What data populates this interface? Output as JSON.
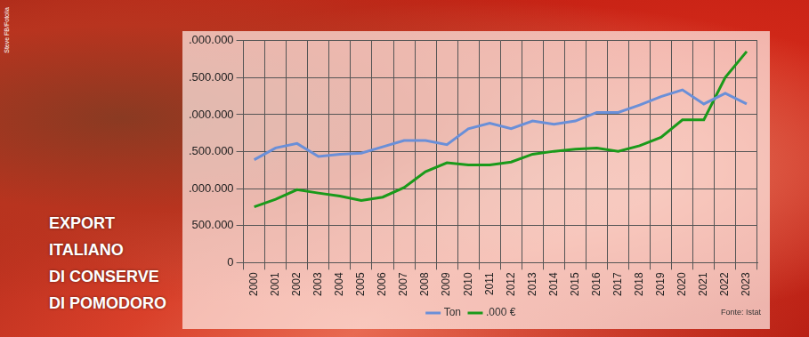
{
  "chart_data": {
    "type": "line",
    "title": [
      "EXPORT",
      "ITALIANO",
      "DI CONSERVE",
      "DI POMODORO"
    ],
    "annotations": [
      "Fonte: Istat",
      "Steve FB/Fotolia"
    ],
    "categories": [
      "2000",
      "2001",
      "2002",
      "2003",
      "2004",
      "2005",
      "2006",
      "2007",
      "2008",
      "2009",
      "2010",
      "2011",
      "2012",
      "2013",
      "2014",
      "2015",
      "2016",
      "2017",
      "2018",
      "2019",
      "2020",
      "2021",
      "2022",
      "2023"
    ],
    "series": [
      {
        "name": "Ton",
        "color": "#6a8fd8",
        "line_style": "solid",
        "marker": "none",
        "values": [
          1391000,
          1550000,
          1610000,
          1435000,
          1465000,
          1480000,
          1565000,
          1650000,
          1650000,
          1595000,
          1810000,
          1885000,
          1810000,
          1915000,
          1870000,
          1915000,
          2030000,
          2030000,
          2130000,
          2245000,
          2335000,
          2145000,
          2290000,
          2145000
        ]
      },
      {
        "name": ".000 €",
        "color": "#1a9a1a",
        "line_style": "solid",
        "marker": "none",
        "values": [
          754000,
          855000,
          985000,
          940000,
          900000,
          840000,
          885000,
          1015000,
          1230000,
          1350000,
          1320000,
          1320000,
          1360000,
          1465000,
          1505000,
          1535000,
          1550000,
          1505000,
          1580000,
          1695000,
          1930000,
          1930000,
          2505000,
          2855000
        ]
      }
    ],
    "ylim": [
      0,
      3000000
    ],
    "yticks": [
      0,
      {
        "value": 500000,
        "label": "500.000"
      },
      {
        "value": 1000000,
        "label": ".000.000"
      },
      {
        "value": 1500000,
        "label": ".500.000"
      },
      {
        "value": 2000000,
        "label": ".000.000"
      },
      {
        "value": 2500000,
        "label": ".500.000"
      },
      {
        "value": 3000000,
        "label": ".000.000"
      }
    ],
    "grid": true,
    "legend": "bottom"
  }
}
